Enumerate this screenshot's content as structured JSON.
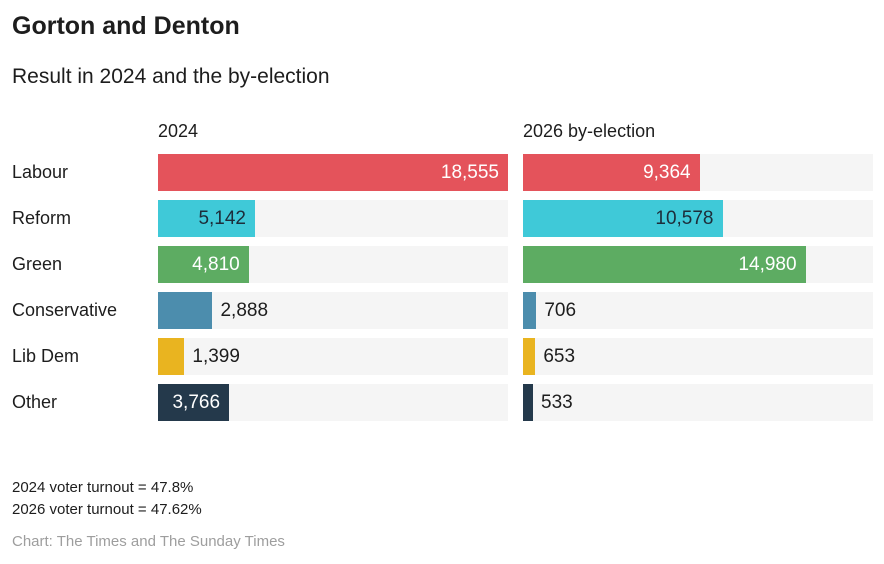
{
  "header": {
    "title": "Gorton and Denton",
    "subtitle": "Result in 2024 and the by-election"
  },
  "chart_data": {
    "type": "bar",
    "orientation": "horizontal",
    "title": "Gorton and Denton",
    "subtitle": "Result in 2024 and the by-election",
    "categories": [
      "Labour",
      "Reform",
      "Green",
      "Conservative",
      "Lib Dem",
      "Other"
    ],
    "series": [
      {
        "name": "2024",
        "values": [
          18555,
          5142,
          4810,
          2888,
          1399,
          3766
        ],
        "labels": [
          "18,555",
          "5,142",
          "4,810",
          "2,888",
          "1,399",
          "3,766"
        ]
      },
      {
        "name": "2026 by-election",
        "values": [
          9364,
          10578,
          14980,
          706,
          653,
          533
        ],
        "labels": [
          "9,364",
          "10,578",
          "14,980",
          "706",
          "653",
          "533"
        ]
      }
    ],
    "xlim": [
      0,
      18555
    ],
    "xmax": 18555,
    "grid": false,
    "legend_position": "column-headers",
    "bar_colors": [
      "#e4535b",
      "#3fc9d8",
      "#5dac62",
      "#4c8dad",
      "#e9b420",
      "#24394b"
    ],
    "inside_label_colors": [
      "#ffffff",
      "#1d2d3a",
      "#ffffff",
      "#1d2d3a",
      "#1d2d3a",
      "#ffffff"
    ],
    "track_color": "#f5f5f5"
  },
  "footer": {
    "turnout_2024": "2024 voter turnout = 47.8%",
    "turnout_2026": "2026 voter turnout = 47.62%",
    "credit": "Chart: The Times and The Sunday Times"
  }
}
